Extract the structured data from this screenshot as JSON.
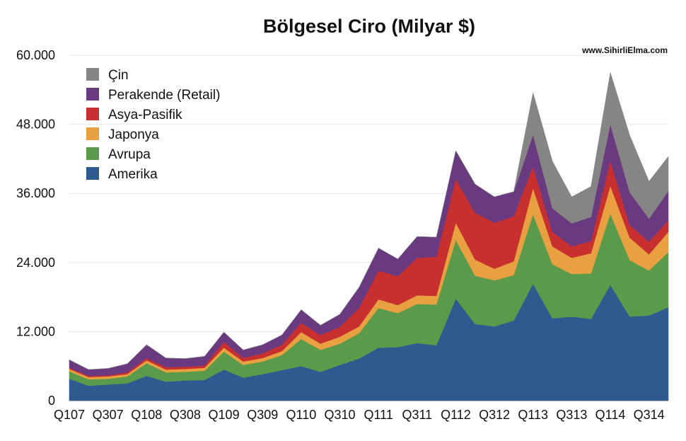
{
  "chart_data": {
    "type": "area",
    "stacked": true,
    "title": "Bölgesel Ciro (Milyar $)",
    "watermark": "www.SihirliElma.com",
    "xlabel": "",
    "ylabel": "",
    "ylim": [
      0,
      60000
    ],
    "yticks": [
      0,
      12000,
      24000,
      36000,
      48000,
      60000
    ],
    "ytick_labels": [
      "0",
      "12.000",
      "24.000",
      "36.000",
      "48.000",
      "60.000"
    ],
    "grid": "horizontal",
    "legend_position": "top-left",
    "x": [
      "Q107",
      "Q207",
      "Q307",
      "Q407",
      "Q108",
      "Q208",
      "Q308",
      "Q408",
      "Q109",
      "Q209",
      "Q309",
      "Q409",
      "Q110",
      "Q210",
      "Q310",
      "Q410",
      "Q111",
      "Q211",
      "Q311",
      "Q411",
      "Q112",
      "Q212",
      "Q312",
      "Q412",
      "Q113",
      "Q213",
      "Q313",
      "Q413",
      "Q114",
      "Q214",
      "Q314",
      "Q414"
    ],
    "x_tick_labels": [
      "Q107",
      "Q307",
      "Q108",
      "Q308",
      "Q109",
      "Q309",
      "Q110",
      "Q310",
      "Q111",
      "Q311",
      "Q112",
      "Q312",
      "Q113",
      "Q313",
      "Q114",
      "Q314"
    ],
    "series": [
      {
        "name": "Amerika",
        "color": "#2e5a8f",
        "values": [
          3800,
          2600,
          2800,
          3000,
          4300,
          3300,
          3500,
          3600,
          5400,
          4000,
          4600,
          5300,
          6000,
          5000,
          6200,
          7300,
          9200,
          9300,
          10000,
          9600,
          17700,
          13300,
          12900,
          13900,
          20300,
          14300,
          14600,
          14200,
          20100,
          14600,
          14800,
          16200
        ]
      },
      {
        "name": "Avrupa",
        "color": "#5a9a4a",
        "values": [
          1300,
          1100,
          1000,
          1200,
          2200,
          1600,
          1500,
          1600,
          3100,
          2200,
          2200,
          2600,
          4700,
          3800,
          3700,
          4400,
          6900,
          5900,
          6800,
          7100,
          10200,
          8400,
          8000,
          7900,
          12100,
          9400,
          7400,
          7900,
          12400,
          9800,
          7800,
          9600
        ]
      },
      {
        "name": "Japonya",
        "color": "#e8a040",
        "values": [
          400,
          400,
          400,
          400,
          500,
          500,
          500,
          500,
          700,
          600,
          600,
          700,
          1200,
          1100,
          1200,
          1200,
          1500,
          1400,
          1500,
          1500,
          3000,
          2800,
          2000,
          2400,
          4500,
          3100,
          2800,
          3500,
          4800,
          3900,
          2800,
          3500
        ]
      },
      {
        "name": "Asya-Pasifik",
        "color": "#c83030",
        "values": [
          200,
          200,
          200,
          300,
          400,
          400,
          400,
          400,
          1000,
          600,
          800,
          1100,
          1600,
          1500,
          1700,
          3200,
          5000,
          5000,
          6500,
          6800,
          7600,
          8100,
          8000,
          7800,
          3800,
          2500,
          2000,
          2100,
          4400,
          2200,
          2200,
          2000
        ]
      },
      {
        "name": "Perakende (Retail)",
        "color": "#6a3a80",
        "values": [
          1400,
          1100,
          1200,
          1500,
          2300,
          1600,
          1400,
          1600,
          1700,
          1400,
          1500,
          1700,
          2300,
          1700,
          2200,
          3600,
          3900,
          3000,
          3700,
          3400,
          4900,
          5000,
          4500,
          4300,
          5500,
          4100,
          4000,
          4200,
          6300,
          5700,
          4000,
          5100
        ]
      },
      {
        "name": "Çin",
        "color": "#858585",
        "values": [
          0,
          0,
          0,
          0,
          0,
          0,
          0,
          0,
          0,
          0,
          0,
          0,
          0,
          0,
          0,
          0,
          0,
          0,
          0,
          0,
          0,
          0,
          0,
          0,
          7300,
          8200,
          4600,
          5300,
          9000,
          9900,
          6500,
          6000
        ]
      }
    ],
    "legend_order": [
      "Çin",
      "Perakende (Retail)",
      "Asya-Pasifik",
      "Japonya",
      "Avrupa",
      "Amerika"
    ]
  }
}
